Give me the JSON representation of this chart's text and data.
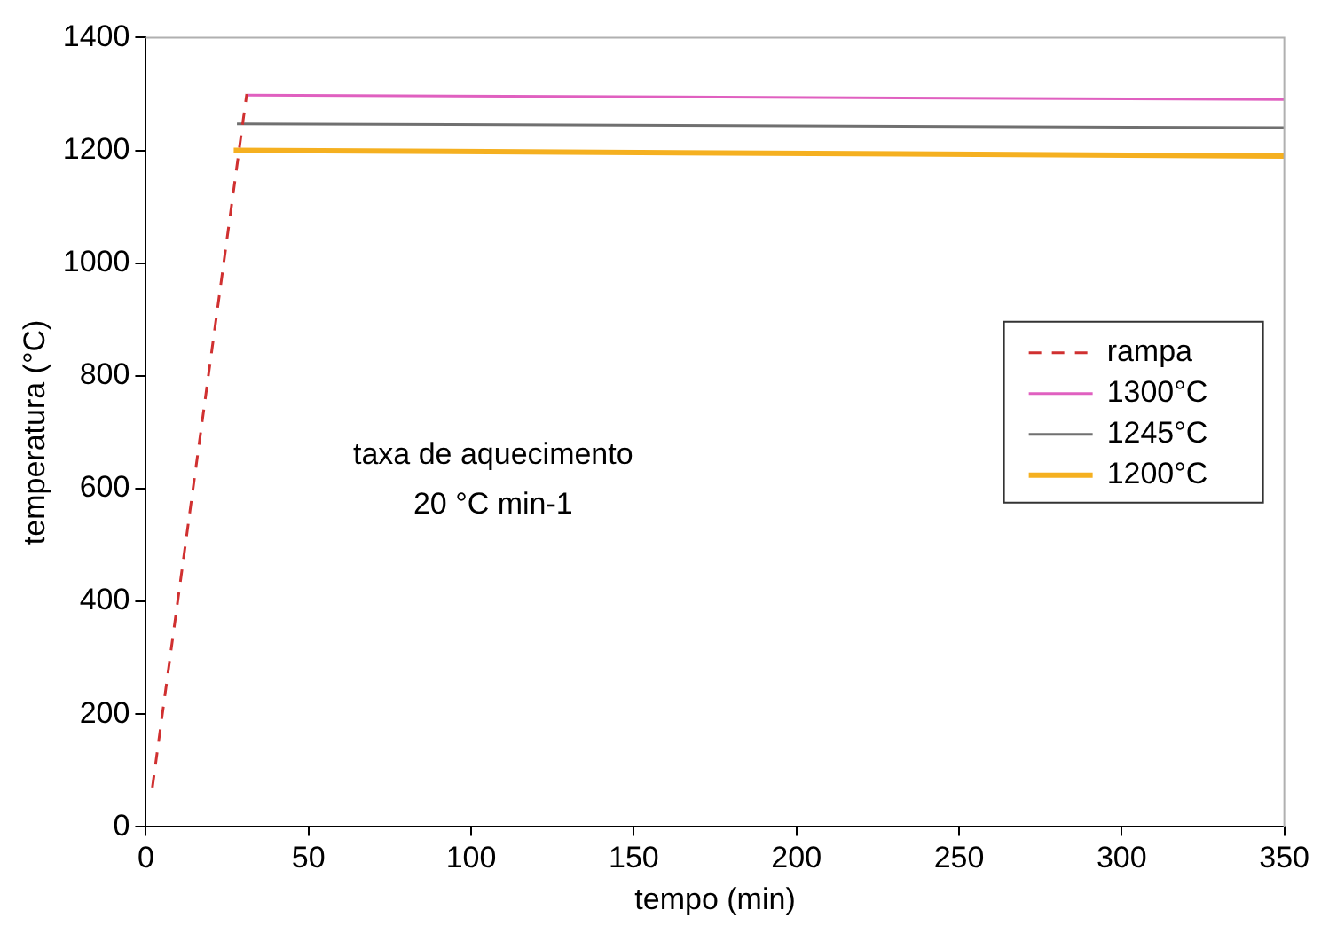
{
  "chart_data": {
    "type": "line",
    "xlabel": "tempo (min)",
    "ylabel": "temperatura (°C)",
    "xlim": [
      0,
      350
    ],
    "xticks": [
      0,
      50,
      100,
      150,
      200,
      250,
      300,
      350
    ],
    "ylim": [
      0,
      1400
    ],
    "yticks": [
      0,
      200,
      400,
      600,
      800,
      1000,
      1200,
      1400
    ],
    "grid": false,
    "legend": "right",
    "marker": "none",
    "annotations": [
      "taxa de aquecimento",
      "20 °C min-1"
    ],
    "series": [
      {
        "name": "rampa",
        "color": "#d03030",
        "line_style": "dashed",
        "x": [
          2,
          31
        ],
        "values": [
          70,
          1300
        ]
      },
      {
        "name": "1300°C",
        "color": "#e060c0",
        "line_style": "solid",
        "x": [
          31,
          350
        ],
        "values": [
          1298,
          1290
        ]
      },
      {
        "name": "1245°C",
        "color": "#707070",
        "line_style": "solid",
        "x": [
          28,
          350
        ],
        "values": [
          1247,
          1240
        ]
      },
      {
        "name": "1200°C",
        "color": "#f5b020",
        "line_style": "solid",
        "x": [
          27,
          350
        ],
        "values": [
          1200,
          1190
        ]
      }
    ]
  }
}
